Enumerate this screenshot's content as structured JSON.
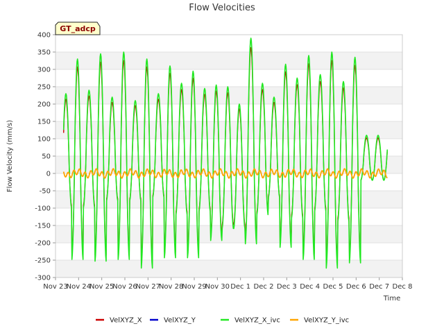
{
  "chart_data": {
    "type": "line",
    "title": "Flow Velocities",
    "xlabel": "Time",
    "ylabel": "Flow Velocity (mm/s)",
    "annotation": "GT_adcp",
    "ylim": [
      -300,
      400
    ],
    "yticks": [
      -300,
      -250,
      -200,
      -150,
      -100,
      -50,
      0,
      50,
      100,
      150,
      200,
      250,
      300,
      350,
      400
    ],
    "xlim": [
      0,
      15
    ],
    "xticks": [
      {
        "pos": 0,
        "label": "Nov 23"
      },
      {
        "pos": 1,
        "label": "Nov 24"
      },
      {
        "pos": 2,
        "label": "Nov 25"
      },
      {
        "pos": 3,
        "label": "Nov 26"
      },
      {
        "pos": 4,
        "label": "Nov 27"
      },
      {
        "pos": 5,
        "label": "Nov 28"
      },
      {
        "pos": 6,
        "label": "Nov 29"
      },
      {
        "pos": 7,
        "label": "Nov 30"
      },
      {
        "pos": 8,
        "label": "Dec 1"
      },
      {
        "pos": 9,
        "label": "Dec 2"
      },
      {
        "pos": 10,
        "label": "Dec 3"
      },
      {
        "pos": 11,
        "label": "Dec 4"
      },
      {
        "pos": 12,
        "label": "Dec 5"
      },
      {
        "pos": 13,
        "label": "Dec 6"
      },
      {
        "pos": 14,
        "label": "Dec 7"
      },
      {
        "pos": 15,
        "label": "Dec 8"
      }
    ],
    "x_unit": "days since Nov 23",
    "series": [
      {
        "name": "VelXYZ_X",
        "color": "#cc0000",
        "key": "x"
      },
      {
        "name": "VelXYZ_Y",
        "color": "#0000cc",
        "key": "y"
      },
      {
        "name": "VelXYZ_X_ivc",
        "color": "#22e822",
        "key": "xivc"
      },
      {
        "name": "VelXYZ_Y_ivc",
        "color": "#ffa500",
        "key": "yivc"
      }
    ],
    "data": {
      "x_start": 0.35,
      "x_end": 14.35,
      "semidiurnal_peaks": [
        {
          "t": 0.45,
          "max": 230,
          "min": -100
        },
        {
          "t": 0.95,
          "max": 330,
          "min": -250
        },
        {
          "t": 1.45,
          "max": 240,
          "min": -100
        },
        {
          "t": 1.95,
          "max": 345,
          "min": -255
        },
        {
          "t": 2.45,
          "max": 220,
          "min": -80
        },
        {
          "t": 2.95,
          "max": 350,
          "min": -250
        },
        {
          "t": 3.45,
          "max": 210,
          "min": -80
        },
        {
          "t": 3.95,
          "max": 330,
          "min": -275
        },
        {
          "t": 4.45,
          "max": 230,
          "min": -70
        },
        {
          "t": 4.95,
          "max": 310,
          "min": -245
        },
        {
          "t": 5.45,
          "max": 260,
          "min": -120
        },
        {
          "t": 5.95,
          "max": 295,
          "min": -245
        },
        {
          "t": 6.45,
          "max": 245,
          "min": -110
        },
        {
          "t": 6.95,
          "max": 255,
          "min": -195
        },
        {
          "t": 7.45,
          "max": 250,
          "min": -160
        },
        {
          "t": 7.95,
          "max": 200,
          "min": -160
        },
        {
          "t": 8.45,
          "max": 390,
          "min": -205
        },
        {
          "t": 8.95,
          "max": 260,
          "min": -120
        },
        {
          "t": 9.45,
          "max": 220,
          "min": -70
        },
        {
          "t": 9.95,
          "max": 315,
          "min": -215
        },
        {
          "t": 10.45,
          "max": 275,
          "min": -130
        },
        {
          "t": 10.95,
          "max": 340,
          "min": -250
        },
        {
          "t": 11.45,
          "max": 285,
          "min": -110
        },
        {
          "t": 11.95,
          "max": 350,
          "min": -275
        },
        {
          "t": 12.45,
          "max": 265,
          "min": -140
        },
        {
          "t": 12.95,
          "max": 335,
          "min": -260
        },
        {
          "t": 13.45,
          "max": 110,
          "min": -20
        }
      ]
    }
  },
  "legend": [
    {
      "label": "VelXYZ_X",
      "color": "#cc0000"
    },
    {
      "label": "VelXYZ_Y",
      "color": "#0000cc"
    },
    {
      "label": "VelXYZ_X_ivc",
      "color": "#22e822"
    },
    {
      "label": "VelXYZ_Y_ivc",
      "color": "#ffa500"
    }
  ]
}
